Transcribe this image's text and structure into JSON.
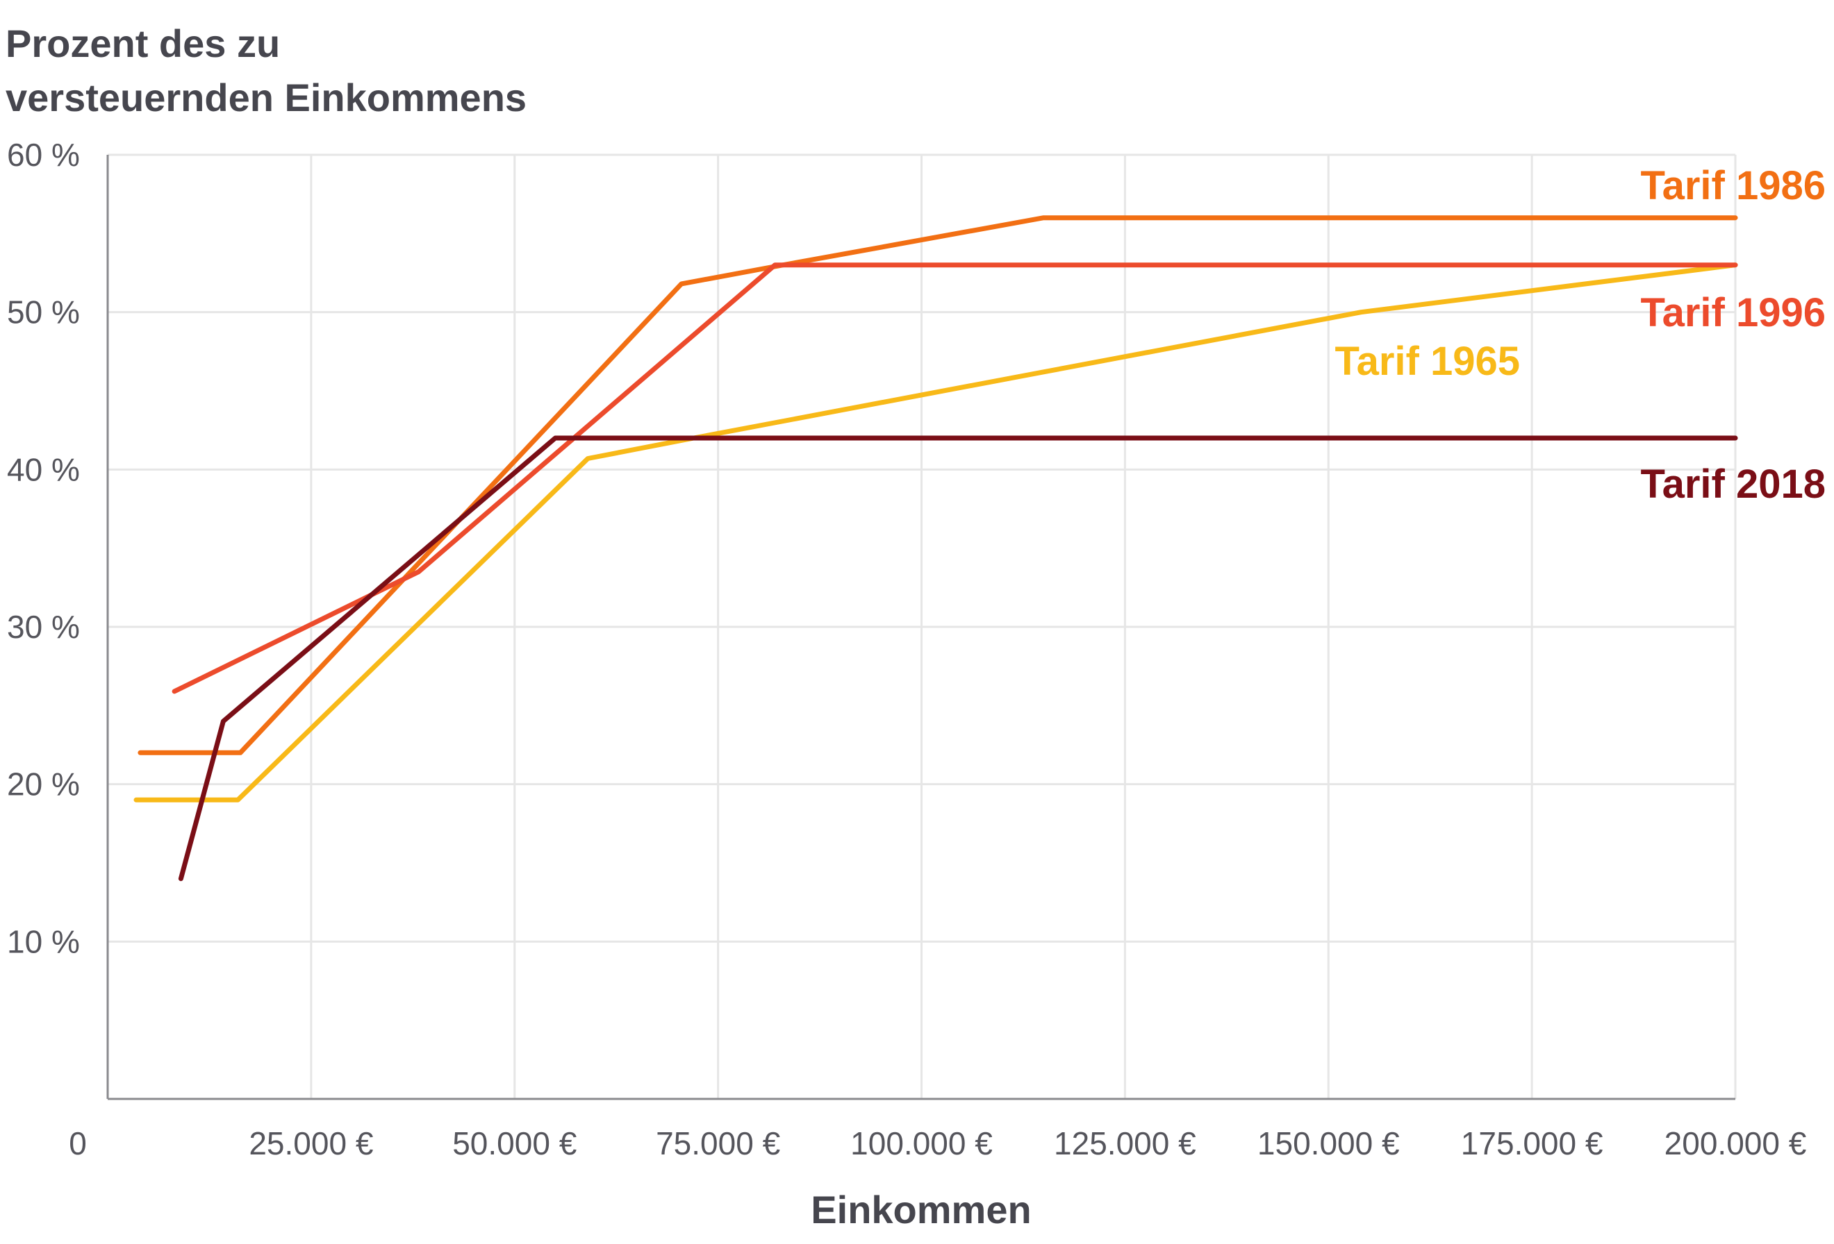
{
  "chart_data": {
    "type": "line",
    "ylabel_lines": [
      "Prozent des zu",
      "versteuernden Einkommens"
    ],
    "xlabel": "Einkommen",
    "xlim": [
      0,
      200000
    ],
    "ylim": [
      0,
      60
    ],
    "x_ticks": [
      {
        "value": 0,
        "label": "0"
      },
      {
        "value": 25000,
        "label": "25.000 €"
      },
      {
        "value": 50000,
        "label": "50.000 €"
      },
      {
        "value": 75000,
        "label": "75.000 €"
      },
      {
        "value": 100000,
        "label": "100.000 €"
      },
      {
        "value": 125000,
        "label": "125.000 €"
      },
      {
        "value": 150000,
        "label": "150.000 €"
      },
      {
        "value": 175000,
        "label": "175.000 €"
      },
      {
        "value": 200000,
        "label": "200.000 €"
      }
    ],
    "y_ticks": [
      {
        "value": 10,
        "label": "10 %"
      },
      {
        "value": 20,
        "label": "20 %"
      },
      {
        "value": 30,
        "label": "30 %"
      },
      {
        "value": 40,
        "label": "40 %"
      },
      {
        "value": 50,
        "label": "50 %"
      },
      {
        "value": 60,
        "label": "60 %"
      }
    ],
    "grid": true,
    "series": [
      {
        "name": "Tarif 1965",
        "color": "#f8b918",
        "points": [
          [
            3500,
            19
          ],
          [
            16000,
            19
          ],
          [
            59000,
            40.7
          ],
          [
            72000,
            42
          ],
          [
            115000,
            46.2
          ],
          [
            154000,
            50
          ],
          [
            200000,
            53
          ]
        ]
      },
      {
        "name": "Tarif 1986",
        "color": "#f26f13",
        "points": [
          [
            4000,
            22
          ],
          [
            16300,
            22
          ],
          [
            70500,
            51.8
          ],
          [
            83000,
            53
          ],
          [
            115000,
            56
          ],
          [
            200000,
            56
          ]
        ]
      },
      {
        "name": "Tarif 1996",
        "color": "#ec4b2c",
        "points": [
          [
            8200,
            25.9
          ],
          [
            38200,
            33.5
          ],
          [
            82000,
            53
          ],
          [
            200000,
            53
          ]
        ]
      },
      {
        "name": "Tarif 2018",
        "color": "#7a0e16",
        "points": [
          [
            9000,
            14
          ],
          [
            14200,
            24
          ],
          [
            55000,
            42
          ],
          [
            200000,
            42
          ]
        ]
      }
    ],
    "labels": [
      {
        "series": "Tarif 1986",
        "text": "Tarif 1986",
        "color": "#f26f13"
      },
      {
        "series": "Tarif 1996",
        "text": "Tarif 1996",
        "color": "#ec4b2c"
      },
      {
        "series": "Tarif 1965",
        "text": "Tarif 1965",
        "color": "#f8b918"
      },
      {
        "series": "Tarif 2018",
        "text": "Tarif 2018",
        "color": "#7a0e16"
      }
    ]
  }
}
